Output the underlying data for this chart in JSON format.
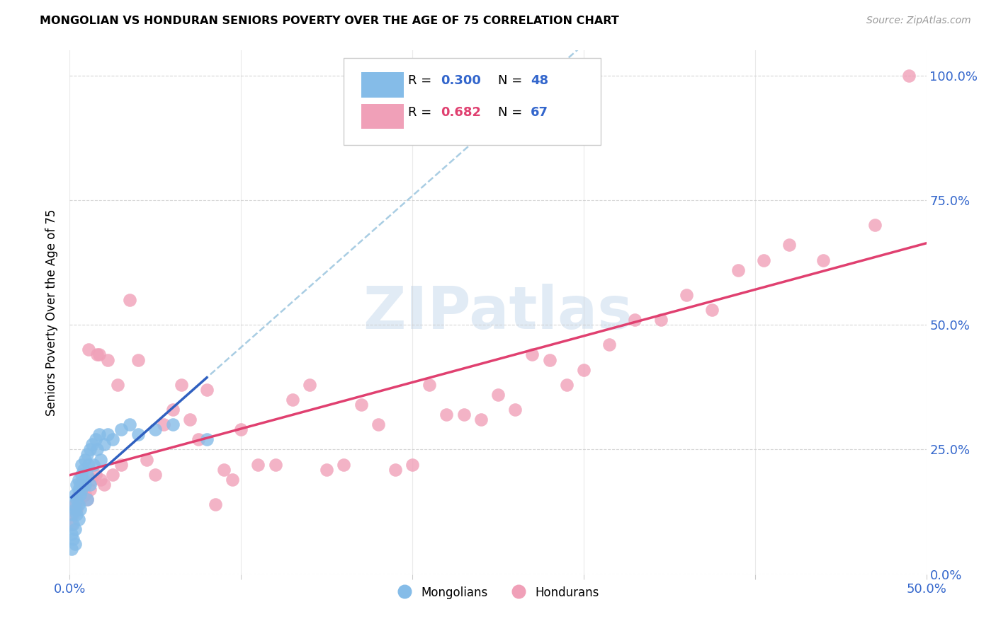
{
  "title": "MONGOLIAN VS HONDURAN SENIORS POVERTY OVER THE AGE OF 75 CORRELATION CHART",
  "source": "Source: ZipAtlas.com",
  "ylabel": "Seniors Poverty Over the Age of 75",
  "xlim": [
    0.0,
    0.5
  ],
  "ylim": [
    0.0,
    1.05
  ],
  "xticks": [
    0.0,
    0.1,
    0.2,
    0.3,
    0.4,
    0.5
  ],
  "xticklabels": [
    "0.0%",
    "",
    "",
    "",
    "",
    "50.0%"
  ],
  "yticks_right": [
    0.0,
    0.25,
    0.5,
    0.75,
    1.0
  ],
  "yticklabels_right": [
    "0.0%",
    "25.0%",
    "50.0%",
    "75.0%",
    "100.0%"
  ],
  "mongolian_color": "#85bce8",
  "honduran_color": "#f0a0b8",
  "mongolian_line_color": "#3060c0",
  "honduran_line_color": "#e04070",
  "dashed_line_color": "#a0c8e0",
  "watermark_color": "#c5d8ec",
  "mongolian_x": [
    0.001,
    0.001,
    0.001,
    0.002,
    0.002,
    0.002,
    0.003,
    0.003,
    0.003,
    0.003,
    0.004,
    0.004,
    0.004,
    0.005,
    0.005,
    0.005,
    0.005,
    0.006,
    0.006,
    0.006,
    0.007,
    0.007,
    0.007,
    0.008,
    0.008,
    0.009,
    0.009,
    0.01,
    0.01,
    0.01,
    0.011,
    0.012,
    0.012,
    0.013,
    0.014,
    0.015,
    0.016,
    0.017,
    0.018,
    0.02,
    0.022,
    0.025,
    0.03,
    0.035,
    0.04,
    0.05,
    0.06,
    0.08
  ],
  "mongolian_y": [
    0.05,
    0.08,
    0.12,
    0.1,
    0.14,
    0.07,
    0.13,
    0.16,
    0.09,
    0.06,
    0.15,
    0.18,
    0.12,
    0.17,
    0.14,
    0.19,
    0.11,
    0.18,
    0.13,
    0.16,
    0.2,
    0.17,
    0.22,
    0.21,
    0.19,
    0.23,
    0.18,
    0.24,
    0.2,
    0.15,
    0.22,
    0.25,
    0.18,
    0.26,
    0.22,
    0.27,
    0.25,
    0.28,
    0.23,
    0.26,
    0.28,
    0.27,
    0.29,
    0.3,
    0.28,
    0.29,
    0.3,
    0.27
  ],
  "honduran_x": [
    0.001,
    0.002,
    0.003,
    0.004,
    0.005,
    0.006,
    0.007,
    0.008,
    0.009,
    0.01,
    0.011,
    0.012,
    0.013,
    0.015,
    0.016,
    0.017,
    0.018,
    0.02,
    0.022,
    0.025,
    0.028,
    0.03,
    0.035,
    0.04,
    0.045,
    0.05,
    0.055,
    0.06,
    0.065,
    0.07,
    0.075,
    0.08,
    0.085,
    0.09,
    0.095,
    0.1,
    0.11,
    0.12,
    0.13,
    0.14,
    0.15,
    0.16,
    0.17,
    0.18,
    0.19,
    0.2,
    0.21,
    0.22,
    0.23,
    0.24,
    0.25,
    0.26,
    0.27,
    0.28,
    0.29,
    0.3,
    0.315,
    0.33,
    0.345,
    0.36,
    0.375,
    0.39,
    0.405,
    0.42,
    0.44,
    0.47,
    0.49
  ],
  "honduran_y": [
    0.1,
    0.12,
    0.14,
    0.13,
    0.16,
    0.15,
    0.18,
    0.17,
    0.16,
    0.15,
    0.45,
    0.17,
    0.19,
    0.2,
    0.44,
    0.44,
    0.19,
    0.18,
    0.43,
    0.2,
    0.38,
    0.22,
    0.55,
    0.43,
    0.23,
    0.2,
    0.3,
    0.33,
    0.38,
    0.31,
    0.27,
    0.37,
    0.14,
    0.21,
    0.19,
    0.29,
    0.22,
    0.22,
    0.35,
    0.38,
    0.21,
    0.22,
    0.34,
    0.3,
    0.21,
    0.22,
    0.38,
    0.32,
    0.32,
    0.31,
    0.36,
    0.33,
    0.44,
    0.43,
    0.38,
    0.41,
    0.46,
    0.51,
    0.51,
    0.56,
    0.53,
    0.61,
    0.63,
    0.66,
    0.63,
    0.7,
    1.0
  ]
}
